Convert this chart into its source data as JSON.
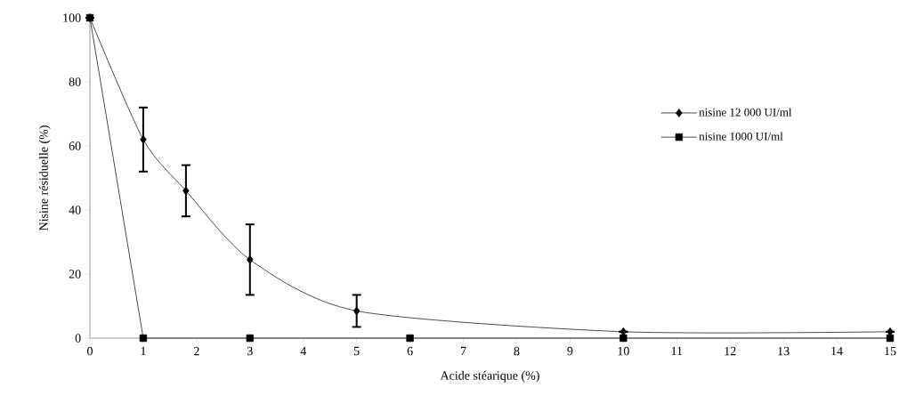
{
  "chart_data": {
    "type": "line",
    "xlabel": "Acide stéarique (%)",
    "ylabel": "Nisine résiduelle (%)",
    "xlim": [
      0,
      15
    ],
    "ylim": [
      0,
      100
    ],
    "xticks": [
      0,
      1,
      2,
      3,
      4,
      5,
      6,
      7,
      8,
      9,
      10,
      11,
      12,
      13,
      14,
      15
    ],
    "yticks": [
      0,
      20,
      40,
      60,
      80,
      100
    ],
    "grid": false,
    "legend": "right",
    "series": [
      {
        "name": "nisine 12 000 UI/ml",
        "color": "#000000",
        "marker": "diamond",
        "x": [
          0,
          1,
          1.8,
          3,
          5,
          10,
          15
        ],
        "values": [
          100,
          62,
          46,
          24.5,
          8.5,
          2,
          2
        ],
        "errors": [
          null,
          [
            52,
            72
          ],
          [
            38,
            54
          ],
          [
            13.5,
            35.5
          ],
          [
            3.5,
            13.5
          ],
          null,
          null
        ]
      },
      {
        "name": "nisine 1000 UI/ml",
        "color": "#000000",
        "marker": "square",
        "x": [
          0,
          1,
          3,
          6,
          10,
          15
        ],
        "values": [
          100,
          0,
          0,
          0,
          0,
          0
        ]
      }
    ]
  }
}
